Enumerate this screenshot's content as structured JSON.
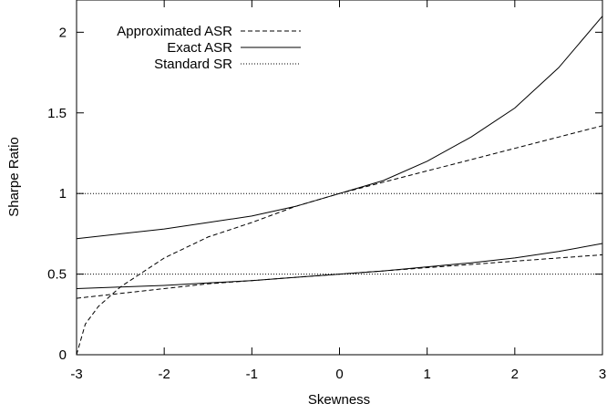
{
  "chart_data": {
    "type": "line",
    "xlabel": "Skewness",
    "ylabel": "Sharpe Ratio",
    "xlim": [
      -3,
      3
    ],
    "ylim": [
      0,
      2.2
    ],
    "x_ticks": [
      "-3",
      "-2",
      "-1",
      "0",
      "1",
      "2",
      "3"
    ],
    "y_ticks": [
      "0",
      "0.5",
      "1",
      "1.5",
      "2"
    ],
    "grid": false,
    "legend_position": "top-left",
    "legend": [
      {
        "label": "Approximated ASR",
        "style": "dashed"
      },
      {
        "label": "Exact ASR",
        "style": "solid"
      },
      {
        "label": "Standard SR",
        "style": "dotted"
      }
    ],
    "series": [
      {
        "name": "Approximated ASR",
        "style": "dashed",
        "x": [
          -3,
          -2.9,
          -2.75,
          -2.5,
          -2,
          -1.5,
          -1,
          -0.5,
          0,
          0.5,
          1,
          1.5,
          2,
          2.5,
          3
        ],
        "y": [
          0,
          0.19,
          0.3,
          0.42,
          0.6,
          0.73,
          0.82,
          0.92,
          1.0,
          1.07,
          1.14,
          1.21,
          1.28,
          1.35,
          1.42
        ]
      },
      {
        "name": "Exact ASR",
        "style": "solid",
        "x": [
          -3,
          -2.5,
          -2,
          -1.5,
          -1,
          -0.5,
          0,
          0.5,
          1,
          1.5,
          2,
          2.5,
          3
        ],
        "y": [
          0.72,
          0.75,
          0.78,
          0.82,
          0.86,
          0.92,
          1.0,
          1.08,
          1.2,
          1.35,
          1.53,
          1.78,
          2.1
        ]
      },
      {
        "name": "Approximated ASR",
        "style": "dashed",
        "x": [
          -3,
          -2.5,
          -2,
          -1.5,
          -1,
          -0.5,
          0,
          0.5,
          1,
          1.5,
          2,
          2.5,
          3
        ],
        "y": [
          0.35,
          0.38,
          0.41,
          0.44,
          0.46,
          0.48,
          0.5,
          0.52,
          0.54,
          0.56,
          0.58,
          0.6,
          0.62
        ]
      },
      {
        "name": "Exact ASR",
        "style": "solid",
        "x": [
          -3,
          -2.5,
          -2,
          -1.5,
          -1,
          -0.5,
          0,
          0.5,
          1,
          1.5,
          2,
          2.5,
          3
        ],
        "y": [
          0.41,
          0.42,
          0.43,
          0.445,
          0.46,
          0.48,
          0.5,
          0.52,
          0.545,
          0.57,
          0.6,
          0.64,
          0.69
        ]
      },
      {
        "name": "Standard SR",
        "style": "dotted",
        "x": [
          -3,
          3
        ],
        "y": [
          1.0,
          1.0
        ]
      },
      {
        "name": "Standard SR",
        "style": "dotted",
        "x": [
          -3,
          3
        ],
        "y": [
          0.5,
          0.5
        ]
      }
    ]
  }
}
